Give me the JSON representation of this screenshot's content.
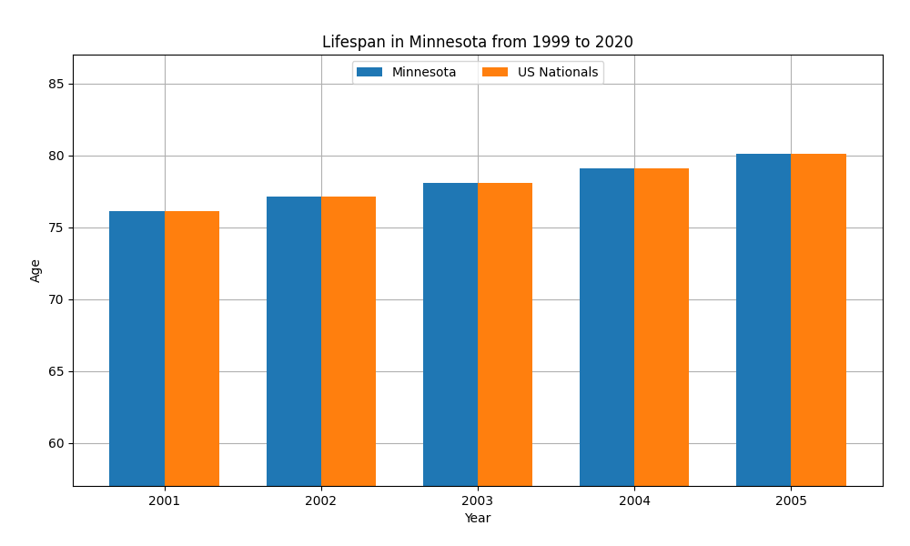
{
  "chart_data": {
    "type": "bar",
    "title": "Lifespan in Minnesota from 1999 to 2020",
    "x_label": "Year",
    "y_label": "Age",
    "categories": [
      "2001",
      "2002",
      "2003",
      "2004",
      "2005"
    ],
    "series": [
      {
        "name": "Minnesota",
        "values": [
          76.1,
          77.1,
          78.1,
          79.1,
          80.1
        ]
      },
      {
        "name": "US Nationals",
        "values": [
          76.1,
          77.1,
          78.1,
          79.1,
          80.1
        ]
      }
    ],
    "ylim": [
      57,
      87
    ],
    "yticks": [
      60,
      65,
      70,
      75,
      80,
      85
    ],
    "grid": true,
    "legend": "upper center"
  }
}
